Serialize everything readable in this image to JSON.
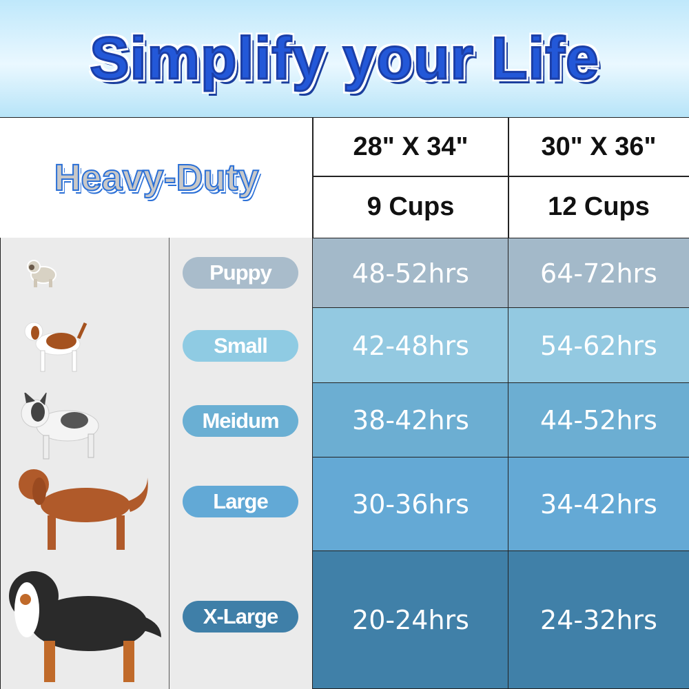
{
  "banner": {
    "title": "Simplify your Life"
  },
  "table": {
    "brand": "Heavy-Duty",
    "columns": [
      {
        "size": "28\" X 34\"",
        "capacity": "9 Cups"
      },
      {
        "size": "30\" X 36\"",
        "capacity": "12 Cups"
      }
    ],
    "rows": [
      {
        "label": "Puppy",
        "values": [
          "48-52hrs",
          "64-72hrs"
        ],
        "color": "#a3b9c9",
        "dog": "pug-icon"
      },
      {
        "label": "Small",
        "values": [
          "42-48hrs",
          "54-62hrs"
        ],
        "color": "#93c9e1",
        "dog": "beagle-icon"
      },
      {
        "label": "Meidum",
        "values": [
          "38-42hrs",
          "44-52hrs"
        ],
        "color": "#6caed2",
        "dog": "french-bulldog-icon"
      },
      {
        "label": "Large",
        "values": [
          "30-36hrs",
          "34-42hrs"
        ],
        "color": "#64a9d5",
        "dog": "golden-retriever-icon"
      },
      {
        "label": "X-Large",
        "values": [
          "20-24hrs",
          "24-32hrs"
        ],
        "color": "#4080a8",
        "dog": "bernese-mountain-dog-icon"
      }
    ]
  }
}
